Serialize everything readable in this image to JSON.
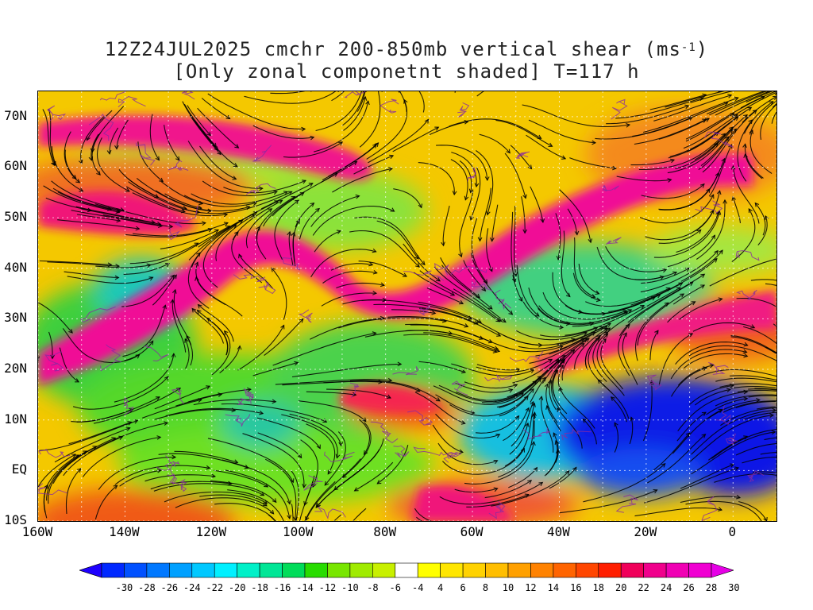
{
  "title": {
    "line1_prefix": "12Z24JUL2025 cmchr 200-850mb vertical shear (ms",
    "line1_sup": "-1",
    "line1_suffix": ")",
    "line2": "[Only zonal componetnt shaded] T=117 h"
  },
  "map": {
    "lon_range": [
      -160,
      10
    ],
    "lat_range": [
      -10,
      75
    ],
    "y_ticks": [
      "70N",
      "60N",
      "50N",
      "40N",
      "30N",
      "20N",
      "10N",
      "EQ",
      "10S"
    ],
    "x_ticks": [
      "160W",
      "140W",
      "120W",
      "100W",
      "80W",
      "60W",
      "40W",
      "20W",
      "0"
    ],
    "fill_description_colors": {
      "strong_positive": "#f20f96",
      "moderate_positive": "#f05a16",
      "weak_positive": "#f7d200",
      "weak_negative": "#7ee000",
      "moderate_negative": "#1cc8c8",
      "strong_negative": "#0a14e6"
    }
  },
  "colorbar": {
    "labels": [
      "-30",
      "-28",
      "-26",
      "-24",
      "-22",
      "-20",
      "-18",
      "-16",
      "-14",
      "-12",
      "-10",
      "-8",
      "-6",
      "-4",
      "4",
      "6",
      "8",
      "10",
      "12",
      "14",
      "16",
      "18",
      "20",
      "22",
      "24",
      "26",
      "28",
      "30"
    ],
    "colors": [
      "#1e00ff",
      "#0028ff",
      "#0050ff",
      "#0078ff",
      "#00a0ff",
      "#00c8ff",
      "#00f0ff",
      "#00f0c8",
      "#00e696",
      "#00dc5a",
      "#28dc00",
      "#78e600",
      "#a0eb00",
      "#c8f000",
      "#ffffff",
      "#ffff00",
      "#ffe600",
      "#ffd200",
      "#ffbe00",
      "#ffa000",
      "#ff8200",
      "#ff6400",
      "#ff4600",
      "#ff1e00",
      "#f0005a",
      "#f0008c",
      "#f000b4",
      "#f000d2",
      "#e600e6"
    ]
  }
}
